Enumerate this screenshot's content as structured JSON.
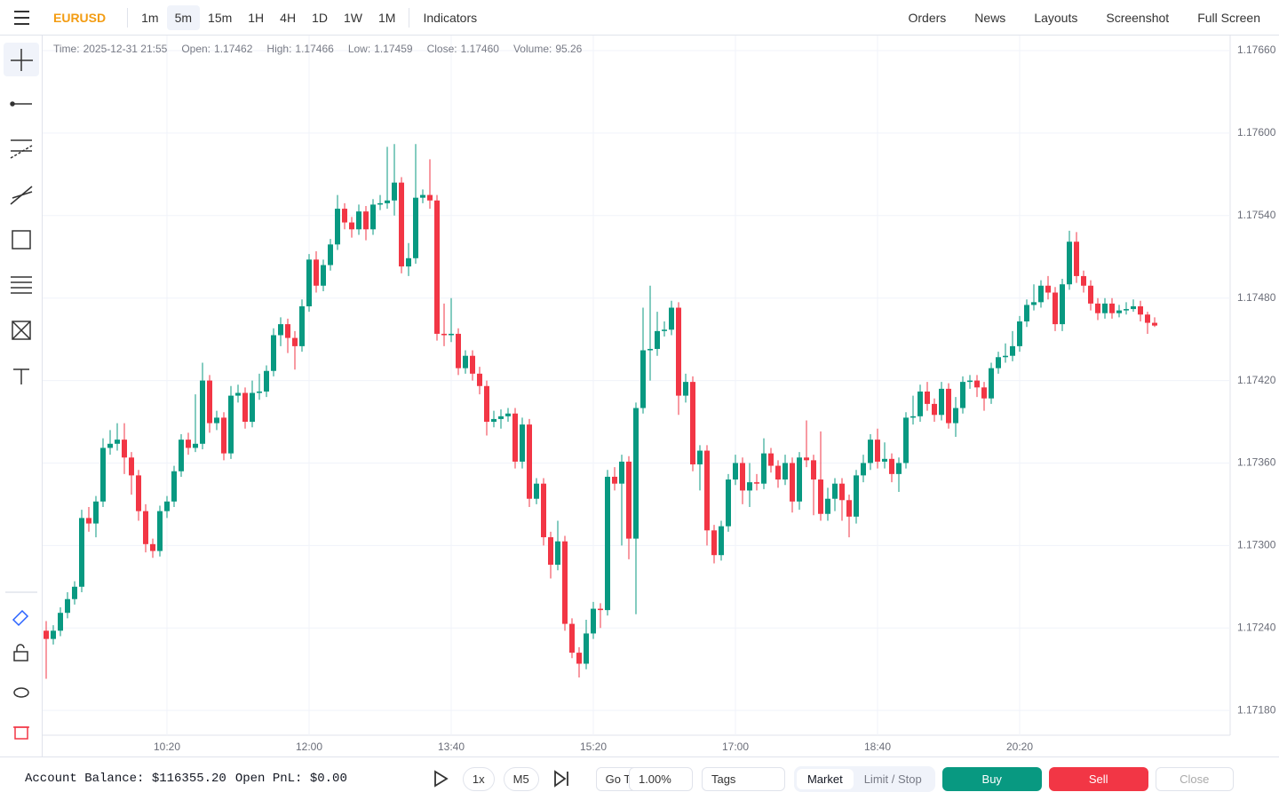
{
  "toolbar": {
    "symbol": "EURUSD",
    "timeframes": [
      "1m",
      "5m",
      "15m",
      "1H",
      "4H",
      "1D",
      "1W",
      "1M"
    ],
    "active_timeframe": "5m",
    "indicators": "Indicators",
    "right": [
      "Orders",
      "News",
      "Layouts",
      "Screenshot",
      "Full Screen"
    ]
  },
  "info": [
    {
      "label": "Time:",
      "value": "2025-12-31 21:55"
    },
    {
      "label": "Open:",
      "value": "1.17462"
    },
    {
      "label": "High:",
      "value": "1.17466"
    },
    {
      "label": "Low:",
      "value": "1.17459"
    },
    {
      "label": "Close:",
      "value": "1.17460"
    },
    {
      "label": "Volume:",
      "value": "95.26"
    }
  ],
  "chart_data": {
    "type": "candlestick",
    "up_color": "#089981",
    "down_color": "#f23645",
    "grid": true,
    "x": [
      "08:55",
      "09:00",
      "09:05",
      "09:10",
      "09:15",
      "09:20",
      "09:25",
      "09:30",
      "09:35",
      "09:40",
      "09:45",
      "09:50",
      "09:55",
      "10:00",
      "10:05",
      "10:10",
      "10:15",
      "10:20",
      "10:25",
      "10:30",
      "10:35",
      "10:40",
      "10:45",
      "10:50",
      "10:55",
      "11:00",
      "11:05",
      "11:10",
      "11:15",
      "11:20",
      "11:25",
      "11:30",
      "11:35",
      "11:40",
      "11:45",
      "11:50",
      "11:55",
      "12:00",
      "12:05",
      "12:10",
      "12:15",
      "12:20",
      "12:25",
      "12:30",
      "12:35",
      "12:40",
      "12:45",
      "12:50",
      "12:55",
      "13:00",
      "13:05",
      "13:10",
      "13:15",
      "13:20",
      "13:25",
      "13:30",
      "13:35",
      "13:40",
      "13:45",
      "13:50",
      "13:55",
      "14:00",
      "14:05",
      "14:10",
      "14:15",
      "14:20",
      "14:25",
      "14:30",
      "14:35",
      "14:40",
      "14:45",
      "14:50",
      "14:55",
      "15:00",
      "15:05",
      "15:10",
      "15:15",
      "15:20",
      "15:25",
      "15:30",
      "15:35",
      "15:40",
      "15:45",
      "15:50",
      "15:55",
      "16:00",
      "16:05",
      "16:10",
      "16:15",
      "16:20",
      "16:25",
      "16:30",
      "16:35",
      "16:40",
      "16:45",
      "16:50",
      "16:55",
      "17:00",
      "17:05",
      "17:10",
      "17:15",
      "17:20",
      "17:25",
      "17:30",
      "17:35",
      "17:40",
      "17:45",
      "17:50",
      "17:55",
      "18:00",
      "18:05",
      "18:10",
      "18:15",
      "18:20",
      "18:25",
      "18:30",
      "18:35",
      "18:40",
      "18:45",
      "18:50",
      "18:55",
      "19:00",
      "19:05",
      "19:10",
      "19:15",
      "19:20",
      "19:25",
      "19:30",
      "19:35",
      "19:40",
      "19:45",
      "19:50",
      "19:55",
      "20:00",
      "20:05",
      "20:10",
      "20:15",
      "20:20",
      "20:25",
      "20:30",
      "20:35",
      "20:40",
      "20:45",
      "20:50",
      "20:55",
      "21:00",
      "21:05",
      "21:10",
      "21:15",
      "21:20",
      "21:25",
      "21:30",
      "21:35",
      "21:40",
      "21:45",
      "21:50",
      "21:55"
    ],
    "open": [
      1.17238,
      1.17232,
      1.17238,
      1.17251,
      1.17261,
      1.1727,
      1.1732,
      1.17316,
      1.17332,
      1.17371,
      1.17374,
      1.17377,
      1.17364,
      1.17351,
      1.17325,
      1.17301,
      1.17296,
      1.17325,
      1.17332,
      1.17354,
      1.17377,
      1.17371,
      1.17374,
      1.1742,
      1.17389,
      1.17393,
      1.17367,
      1.17409,
      1.17411,
      1.1739,
      1.17411,
      1.17412,
      1.17427,
      1.17453,
      1.17461,
      1.17451,
      1.17445,
      1.17474,
      1.17508,
      1.17489,
      1.17504,
      1.17519,
      1.17545,
      1.17535,
      1.1753,
      1.17543,
      1.1753,
      1.17548,
      1.17549,
      1.17551,
      1.17564,
      1.17503,
      1.17509,
      1.17553,
      1.17555,
      1.17551,
      1.17454,
      1.17453,
      1.17454,
      1.17429,
      1.17438,
      1.17425,
      1.17416,
      1.1739,
      1.17392,
      1.17394,
      1.17396,
      1.17361,
      1.17388,
      1.17334,
      1.17345,
      1.17306,
      1.17286,
      1.17303,
      1.17243,
      1.17222,
      1.17214,
      1.17236,
      1.17254,
      1.17253,
      1.1735,
      1.17345,
      1.17361,
      1.17305,
      1.174,
      1.17442,
      1.17443,
      1.17456,
      1.17457,
      1.17473,
      1.17409,
      1.17419,
      1.17359,
      1.17369,
      1.17311,
      1.17293,
      1.17314,
      1.17348,
      1.1736,
      1.1734,
      1.17346,
      1.17345,
      1.17367,
      1.17358,
      1.17348,
      1.1736,
      1.17332,
      1.17364,
      1.17362,
      1.17348,
      1.17323,
      1.17334,
      1.17345,
      1.17333,
      1.17321,
      1.17351,
      1.1736,
      1.17377,
      1.17361,
      1.17363,
      1.17352,
      1.1736,
      1.17393,
      1.17394,
      1.17412,
      1.17403,
      1.17395,
      1.17414,
      1.17389,
      1.174,
      1.17419,
      1.1742,
      1.17415,
      1.17407,
      1.17429,
      1.17437,
      1.17438,
      1.17445,
      1.17463,
      1.17475,
      1.17477,
      1.17489,
      1.17484,
      1.17461,
      1.1749,
      1.17521,
      1.17496,
      1.17489,
      1.17476,
      1.17469,
      1.17476,
      1.17469,
      1.17471,
      1.17472,
      1.17474,
      1.17468,
      1.17462
    ],
    "high": [
      1.17245,
      1.17242,
      1.17255,
      1.17266,
      1.17274,
      1.17326,
      1.17328,
      1.17336,
      1.17378,
      1.17384,
      1.17389,
      1.17389,
      1.17368,
      1.17355,
      1.1733,
      1.17305,
      1.17329,
      1.17336,
      1.17358,
      1.17381,
      1.17382,
      1.1741,
      1.17433,
      1.17424,
      1.17398,
      1.17397,
      1.17416,
      1.17417,
      1.17415,
      1.1742,
      1.17425,
      1.17431,
      1.17458,
      1.17466,
      1.17465,
      1.17456,
      1.17479,
      1.17512,
      1.17514,
      1.17508,
      1.17523,
      1.17555,
      1.17549,
      1.17539,
      1.17548,
      1.17547,
      1.17552,
      1.17555,
      1.1759,
      1.17592,
      1.17568,
      1.1752,
      1.17592,
      1.17559,
      1.17581,
      1.17555,
      1.17476,
      1.1748,
      1.17458,
      1.17442,
      1.17442,
      1.1743,
      1.1742,
      1.17398,
      1.17399,
      1.174,
      1.174,
      1.17393,
      1.17392,
      1.17349,
      1.17349,
      1.1731,
      1.17318,
      1.17307,
      1.17247,
      1.17226,
      1.17246,
      1.17259,
      1.17258,
      1.17355,
      1.17357,
      1.17366,
      1.17365,
      1.17404,
      1.17473,
      1.17489,
      1.1747,
      1.17463,
      1.17478,
      1.17477,
      1.17425,
      1.17423,
      1.17373,
      1.17373,
      1.17315,
      1.17318,
      1.17352,
      1.17366,
      1.17364,
      1.1736,
      1.17352,
      1.17378,
      1.17371,
      1.17362,
      1.17366,
      1.17364,
      1.17368,
      1.17391,
      1.17366,
      1.17383,
      1.17342,
      1.17349,
      1.17349,
      1.17337,
      1.17355,
      1.17366,
      1.17381,
      1.17385,
      1.17375,
      1.17367,
      1.17364,
      1.17397,
      1.17409,
      1.17417,
      1.17419,
      1.17407,
      1.17419,
      1.17418,
      1.17408,
      1.17423,
      1.17424,
      1.17424,
      1.17419,
      1.17433,
      1.17441,
      1.17447,
      1.17456,
      1.17467,
      1.17479,
      1.1749,
      1.17493,
      1.17496,
      1.17488,
      1.17494,
      1.17529,
      1.17528,
      1.175,
      1.17493,
      1.1748,
      1.1748,
      1.1748,
      1.17475,
      1.17477,
      1.17479,
      1.17478,
      1.1747,
      1.17466
    ],
    "low": [
      1.17203,
      1.17228,
      1.17234,
      1.17247,
      1.17257,
      1.17266,
      1.1731,
      1.17306,
      1.17328,
      1.17366,
      1.17369,
      1.17352,
      1.17337,
      1.17318,
      1.17295,
      1.17291,
      1.17292,
      1.1732,
      1.17328,
      1.1735,
      1.17366,
      1.17368,
      1.1737,
      1.17382,
      1.17384,
      1.17362,
      1.17363,
      1.17404,
      1.17385,
      1.17386,
      1.17406,
      1.17408,
      1.17423,
      1.17445,
      1.1744,
      1.17428,
      1.17441,
      1.1747,
      1.17484,
      1.17485,
      1.175,
      1.17515,
      1.1753,
      1.17524,
      1.17526,
      1.17522,
      1.17526,
      1.17544,
      1.17545,
      1.1754,
      1.17498,
      1.17496,
      1.17505,
      1.17549,
      1.17545,
      1.17449,
      1.17445,
      1.17448,
      1.17424,
      1.17425,
      1.1742,
      1.1741,
      1.1738,
      1.17386,
      1.17385,
      1.1739,
      1.17356,
      1.17356,
      1.17328,
      1.1733,
      1.173,
      1.17276,
      1.17282,
      1.17238,
      1.17218,
      1.17204,
      1.1721,
      1.17232,
      1.1724,
      1.17249,
      1.1734,
      1.173,
      1.1729,
      1.1725,
      1.17396,
      1.1742,
      1.17438,
      1.17452,
      1.17453,
      1.17395,
      1.17404,
      1.17354,
      1.1734,
      1.173,
      1.17287,
      1.17289,
      1.1731,
      1.17344,
      1.1733,
      1.17328,
      1.1734,
      1.17341,
      1.17353,
      1.17342,
      1.17344,
      1.17324,
      1.17326,
      1.17357,
      1.17322,
      1.17318,
      1.17318,
      1.17325,
      1.17318,
      1.17306,
      1.17316,
      1.17346,
      1.17355,
      1.17356,
      1.17356,
      1.17346,
      1.17339,
      1.17356,
      1.17388,
      1.1739,
      1.17398,
      1.1739,
      1.17391,
      1.17385,
      1.17379,
      1.17396,
      1.17414,
      1.17408,
      1.17398,
      1.17403,
      1.17425,
      1.17433,
      1.17434,
      1.17441,
      1.17459,
      1.17471,
      1.17473,
      1.17479,
      1.17456,
      1.17456,
      1.17486,
      1.17491,
      1.17484,
      1.17471,
      1.17464,
      1.17465,
      1.17465,
      1.17466,
      1.17468,
      1.1747,
      1.17463,
      1.17454,
      1.17459
    ],
    "close": [
      1.17232,
      1.17238,
      1.17251,
      1.17261,
      1.1727,
      1.1732,
      1.17316,
      1.17332,
      1.17371,
      1.17374,
      1.17377,
      1.17364,
      1.17351,
      1.17325,
      1.17301,
      1.17296,
      1.17325,
      1.17332,
      1.17354,
      1.17377,
      1.17371,
      1.17374,
      1.1742,
      1.17389,
      1.17393,
      1.17367,
      1.17409,
      1.17411,
      1.1739,
      1.17411,
      1.17412,
      1.17427,
      1.17453,
      1.17461,
      1.17451,
      1.17445,
      1.17474,
      1.17508,
      1.17489,
      1.17504,
      1.17519,
      1.17545,
      1.17535,
      1.1753,
      1.17543,
      1.1753,
      1.17548,
      1.17549,
      1.17551,
      1.17564,
      1.17503,
      1.17509,
      1.17553,
      1.17555,
      1.17551,
      1.17454,
      1.17453,
      1.17454,
      1.17429,
      1.17438,
      1.17425,
      1.17416,
      1.1739,
      1.17392,
      1.17394,
      1.17396,
      1.17361,
      1.17388,
      1.17334,
      1.17345,
      1.17306,
      1.17286,
      1.17303,
      1.17243,
      1.17222,
      1.17214,
      1.17236,
      1.17254,
      1.17253,
      1.1735,
      1.17345,
      1.17361,
      1.17305,
      1.174,
      1.17442,
      1.17443,
      1.17456,
      1.17457,
      1.17473,
      1.17409,
      1.17419,
      1.17359,
      1.17369,
      1.17311,
      1.17293,
      1.17314,
      1.17348,
      1.1736,
      1.1734,
      1.17346,
      1.17345,
      1.17367,
      1.17358,
      1.17348,
      1.1736,
      1.17332,
      1.17364,
      1.17362,
      1.17348,
      1.17323,
      1.17334,
      1.17345,
      1.17333,
      1.17321,
      1.17351,
      1.1736,
      1.17377,
      1.17361,
      1.17363,
      1.17352,
      1.1736,
      1.17393,
      1.17394,
      1.17412,
      1.17403,
      1.17395,
      1.17414,
      1.17389,
      1.174,
      1.17419,
      1.1742,
      1.17415,
      1.17407,
      1.17429,
      1.17437,
      1.17438,
      1.17445,
      1.17463,
      1.17475,
      1.17477,
      1.17489,
      1.17484,
      1.17461,
      1.1749,
      1.17521,
      1.17496,
      1.17489,
      1.17476,
      1.17469,
      1.17476,
      1.17469,
      1.17471,
      1.17472,
      1.17474,
      1.17468,
      1.17462,
      1.1746
    ],
    "ylim": [
      1.17162,
      1.17671
    ],
    "yticks": [
      {
        "value": 1.1766,
        "label": "1.17660"
      },
      {
        "value": 1.176,
        "label": "1.17600"
      },
      {
        "value": 1.1754,
        "label": "1.17540"
      },
      {
        "value": 1.1748,
        "label": "1.17480"
      },
      {
        "value": 1.1742,
        "label": "1.17420"
      },
      {
        "value": 1.1736,
        "label": "1.17360"
      },
      {
        "value": 1.173,
        "label": "1.17300"
      },
      {
        "value": 1.1724,
        "label": "1.17240"
      },
      {
        "value": 1.1718,
        "label": "1.17180"
      }
    ],
    "xticks": [
      "10:20",
      "12:00",
      "13:40",
      "15:20",
      "17:00",
      "18:40",
      "20:20"
    ]
  },
  "footer": {
    "balance": "Account Balance: $116355.20",
    "pnl": "Open PnL: $0.00",
    "speed": "1x",
    "timeframe": "M5",
    "goto": "Go To...",
    "risk": "1.00%",
    "tags": "Tags",
    "order_types": [
      "Market",
      "Limit / Stop"
    ],
    "buy": "Buy",
    "sell": "Sell",
    "close": "Close"
  }
}
